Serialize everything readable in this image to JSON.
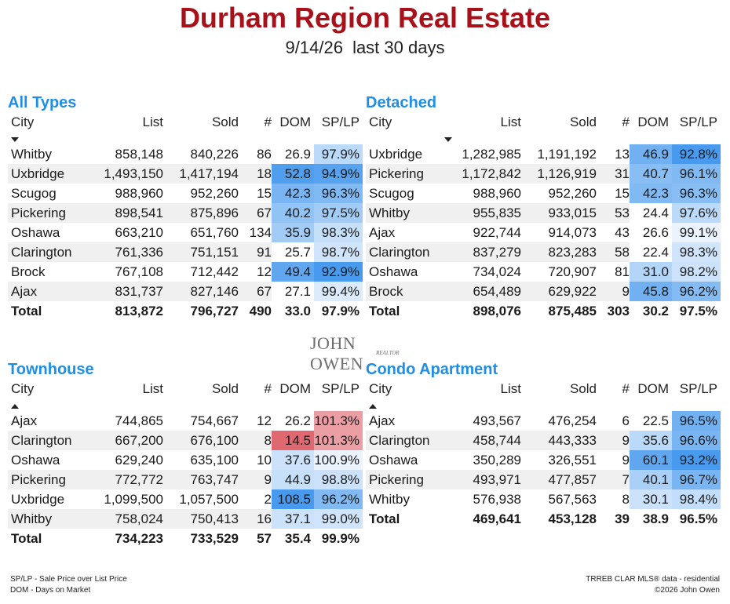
{
  "header": {
    "title": "Durham Region Real Estate",
    "date": "9/14/26",
    "period": "last 30 days"
  },
  "columns": {
    "city": "City",
    "list": "List",
    "sold": "Sold",
    "count": "#",
    "dom": "DOM",
    "splp": "SP/LP"
  },
  "panels": [
    {
      "title": "All Types",
      "sort": "down",
      "rows": [
        {
          "city": "Whitby",
          "list": "858,148",
          "sold": "840,226",
          "count": "86",
          "dom": "26.9",
          "splp": "97.9%",
          "dom_level": 0.0,
          "splp_level": 0.25
        },
        {
          "city": "Uxbridge",
          "list": "1,493,150",
          "sold": "1,417,194",
          "count": "18",
          "dom": "52.8",
          "splp": "94.9%",
          "dom_level": 0.9,
          "splp_level": 0.85
        },
        {
          "city": "Scugog",
          "list": "988,960",
          "sold": "952,260",
          "count": "15",
          "dom": "42.3",
          "splp": "96.3%",
          "dom_level": 0.65,
          "splp_level": 0.6
        },
        {
          "city": "Pickering",
          "list": "898,541",
          "sold": "875,896",
          "count": "67",
          "dom": "40.2",
          "splp": "97.5%",
          "dom_level": 0.5,
          "splp_level": 0.4
        },
        {
          "city": "Oshawa",
          "list": "663,210",
          "sold": "651,760",
          "count": "134",
          "dom": "35.9",
          "splp": "98.3%",
          "dom_level": 0.4,
          "splp_level": 0.18
        },
        {
          "city": "Clarington",
          "list": "761,336",
          "sold": "751,151",
          "count": "91",
          "dom": "25.7",
          "splp": "98.7%",
          "dom_level": 0.0,
          "splp_level": 0.12
        },
        {
          "city": "Brock",
          "list": "767,108",
          "sold": "712,442",
          "count": "12",
          "dom": "49.4",
          "splp": "92.9%",
          "dom_level": 0.8,
          "splp_level": 0.95
        },
        {
          "city": "Ajax",
          "list": "831,737",
          "sold": "827,146",
          "count": "67",
          "dom": "27.1",
          "splp": "99.4%",
          "dom_level": 0.0,
          "splp_level": 0.05
        }
      ],
      "total": {
        "city": "Total",
        "list": "813,872",
        "sold": "796,727",
        "count": "490",
        "dom": "33.0",
        "splp": "97.9%"
      }
    },
    {
      "title": "Detached",
      "sort": "down",
      "rows": [
        {
          "city": "Uxbridge",
          "list": "1,282,985",
          "sold": "1,191,192",
          "count": "13",
          "dom": "46.9",
          "splp": "92.8%",
          "dom_level": 0.7,
          "splp_level": 0.95
        },
        {
          "city": "Pickering",
          "list": "1,172,842",
          "sold": "1,126,919",
          "count": "31",
          "dom": "40.7",
          "splp": "96.1%",
          "dom_level": 0.55,
          "splp_level": 0.6
        },
        {
          "city": "Scugog",
          "list": "988,960",
          "sold": "952,260",
          "count": "15",
          "dom": "42.3",
          "splp": "96.3%",
          "dom_level": 0.6,
          "splp_level": 0.55
        },
        {
          "city": "Whitby",
          "list": "955,835",
          "sold": "933,015",
          "count": "53",
          "dom": "24.4",
          "splp": "97.6%",
          "dom_level": 0.0,
          "splp_level": 0.25
        },
        {
          "city": "Ajax",
          "list": "922,744",
          "sold": "914,073",
          "count": "43",
          "dom": "26.6",
          "splp": "99.1%",
          "dom_level": 0.0,
          "splp_level": 0.0
        },
        {
          "city": "Clarington",
          "list": "837,279",
          "sold": "823,283",
          "count": "58",
          "dom": "22.4",
          "splp": "98.3%",
          "dom_level": 0.0,
          "splp_level": 0.12
        },
        {
          "city": "Oshawa",
          "list": "734,024",
          "sold": "720,907",
          "count": "81",
          "dom": "31.0",
          "splp": "98.2%",
          "dom_level": 0.3,
          "splp_level": 0.14
        },
        {
          "city": "Brock",
          "list": "654,489",
          "sold": "629,922",
          "count": "9",
          "dom": "45.8",
          "splp": "96.2%",
          "dom_level": 0.7,
          "splp_level": 0.58
        }
      ],
      "total": {
        "city": "Total",
        "list": "898,076",
        "sold": "875,485",
        "count": "303",
        "dom": "30.2",
        "splp": "97.5%"
      }
    },
    {
      "title": "Townhouse",
      "sort": "up",
      "rows": [
        {
          "city": "Ajax",
          "list": "744,865",
          "sold": "754,667",
          "count": "12",
          "dom": "26.2",
          "splp": "101.3%",
          "dom_level": 0.0,
          "splp_level": 0.0,
          "splp_hot": 0.35
        },
        {
          "city": "Clarington",
          "list": "667,200",
          "sold": "676,100",
          "count": "8",
          "dom": "14.5",
          "splp": "101.3%",
          "dom_level": 0.0,
          "splp_level": 0.0,
          "dom_hot": 0.8,
          "splp_hot": 0.35
        },
        {
          "city": "Oshawa",
          "list": "629,240",
          "sold": "635,100",
          "count": "10",
          "dom": "37.6",
          "splp": "100.9%",
          "dom_level": 0.15,
          "splp_level": 0.0
        },
        {
          "city": "Pickering",
          "list": "772,772",
          "sold": "763,747",
          "count": "9",
          "dom": "44.9",
          "splp": "98.8%",
          "dom_level": 0.18,
          "splp_level": 0.15
        },
        {
          "city": "Uxbridge",
          "list": "1,099,500",
          "sold": "1,057,500",
          "count": "2",
          "dom": "108.5",
          "splp": "96.2%",
          "dom_level": 0.95,
          "splp_level": 0.6
        },
        {
          "city": "Whitby",
          "list": "758,024",
          "sold": "750,413",
          "count": "16",
          "dom": "37.1",
          "splp": "99.0%",
          "dom_level": 0.15,
          "splp_level": 0.12
        }
      ],
      "total": {
        "city": "Total",
        "list": "734,223",
        "sold": "733,529",
        "count": "57",
        "dom": "35.4",
        "splp": "99.9%"
      }
    },
    {
      "title": "Condo Apartment",
      "sort": "up",
      "rows": [
        {
          "city": "Ajax",
          "list": "493,567",
          "sold": "476,254",
          "count": "6",
          "dom": "22.5",
          "splp": "96.5%",
          "dom_level": 0.0,
          "splp_level": 0.7
        },
        {
          "city": "Clarington",
          "list": "458,744",
          "sold": "443,333",
          "count": "9",
          "dom": "35.6",
          "splp": "96.6%",
          "dom_level": 0.25,
          "splp_level": 0.65
        },
        {
          "city": "Oshawa",
          "list": "350,289",
          "sold": "326,551",
          "count": "9",
          "dom": "60.1",
          "splp": "93.2%",
          "dom_level": 0.8,
          "splp_level": 0.95
        },
        {
          "city": "Pickering",
          "list": "493,971",
          "sold": "477,857",
          "count": "7",
          "dom": "40.1",
          "splp": "96.7%",
          "dom_level": 0.35,
          "splp_level": 0.65
        },
        {
          "city": "Whitby",
          "list": "576,938",
          "sold": "567,563",
          "count": "8",
          "dom": "30.1",
          "splp": "98.4%",
          "dom_level": 0.15,
          "splp_level": 0.2
        }
      ],
      "total": {
        "city": "Total",
        "list": "469,641",
        "sold": "453,128",
        "count": "39",
        "dom": "38.9",
        "splp": "96.5%"
      }
    }
  ],
  "logo": {
    "name": "JOHN OWEN",
    "sub": "REALTOR"
  },
  "footer": {
    "left1": "SP/LP - Sale Price over List Price",
    "left2": "DOM - Days on Market",
    "right1": "TRREB CLAR MLS® data - residential",
    "right2": "©2026 John Owen"
  },
  "colors": {
    "title": "#a8101a",
    "panel_title": "#1e8ee6",
    "blue_hi": "#3f95ec",
    "blue_lo": "#e4f0fd",
    "red_hi": "#d9505a",
    "red_lo": "#f5c8cc"
  }
}
